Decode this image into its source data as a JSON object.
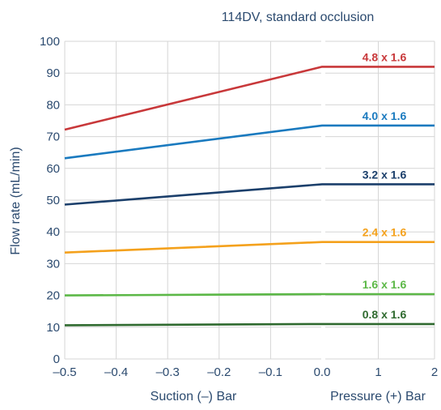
{
  "chart_data": {
    "type": "line",
    "title": "114DV, standard occlusion",
    "ylabel": "Flow rate (mL/min)",
    "ylim": [
      0,
      100
    ],
    "yticks": [
      0,
      10,
      20,
      30,
      40,
      50,
      60,
      70,
      80,
      90,
      100
    ],
    "grid": true,
    "panels": [
      {
        "xlabel": "Suction (–) Bar",
        "xlim": [
          -0.5,
          0
        ],
        "xticks": [
          -0.5,
          -0.4,
          -0.3,
          -0.2,
          -0.1
        ],
        "xtick_labels": [
          "–0.5",
          "–0.4",
          "–0.3",
          "–0.2",
          "–0.1"
        ]
      },
      {
        "xlabel": "Pressure (+) Bar",
        "xlim": [
          0,
          2
        ],
        "xticks": [
          0,
          1,
          2
        ],
        "xtick_labels": [
          "0.0",
          "1",
          "2"
        ]
      }
    ],
    "series": [
      {
        "name": "4.8 x 1.6",
        "color": "#c8383a",
        "suction": [
          [
            -0.5,
            72.2
          ],
          [
            0,
            92
          ]
        ],
        "pressure": [
          [
            0,
            92
          ],
          [
            2,
            92
          ]
        ]
      },
      {
        "name": "4.0 x 1.6",
        "color": "#1a7abf",
        "suction": [
          [
            -0.5,
            63.2
          ],
          [
            0,
            73.5
          ]
        ],
        "pressure": [
          [
            0,
            73.5
          ],
          [
            2,
            73.5
          ]
        ]
      },
      {
        "name": "3.2 x 1.6",
        "color": "#1b3f6b",
        "suction": [
          [
            -0.5,
            48.6
          ],
          [
            0,
            55
          ]
        ],
        "pressure": [
          [
            0,
            55
          ],
          [
            2,
            55
          ]
        ]
      },
      {
        "name": "2.4 x 1.6",
        "color": "#f4a11c",
        "suction": [
          [
            -0.5,
            33.5
          ],
          [
            0,
            36.8
          ]
        ],
        "pressure": [
          [
            0,
            36.8
          ],
          [
            2,
            36.8
          ]
        ]
      },
      {
        "name": "1.6 x 1.6",
        "color": "#5cb847",
        "suction": [
          [
            -0.5,
            20
          ],
          [
            0,
            20.4
          ]
        ],
        "pressure": [
          [
            0,
            20.4
          ],
          [
            2,
            20.4
          ]
        ]
      },
      {
        "name": "0.8 x 1.6",
        "color": "#2f6a2f",
        "suction": [
          [
            -0.5,
            10.6
          ],
          [
            0,
            11
          ]
        ],
        "pressure": [
          [
            0,
            11
          ],
          [
            2,
            11
          ]
        ]
      }
    ]
  }
}
